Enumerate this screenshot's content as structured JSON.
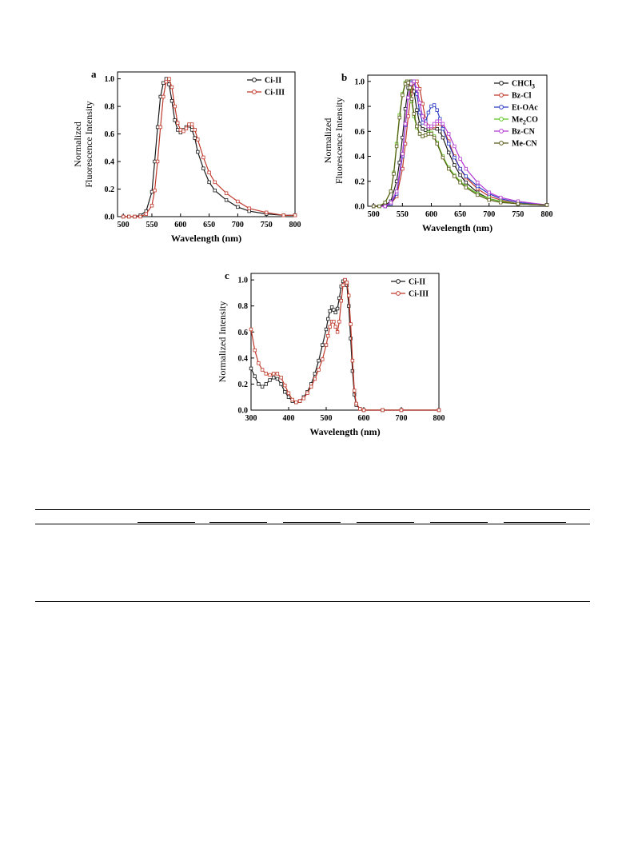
{
  "colors": {
    "black": "#1a1a1a",
    "red": "#c0392b",
    "blue": "#2b3cc4",
    "green": "#5ec41f",
    "magenta": "#b23ad0",
    "olive": "#5a5a1a"
  },
  "chart_data": [
    {
      "id": "a",
      "panel_label": "a",
      "type": "line",
      "title": "",
      "xlabel": "Wavelength (nm)",
      "ylabel": [
        "Normalized",
        "Fluorescence Intensity"
      ],
      "xlim": [
        490,
        800
      ],
      "ylim": [
        0,
        1.05
      ],
      "xticks": [
        500,
        550,
        600,
        650,
        700,
        750,
        800
      ],
      "yticks": [
        0.0,
        0.2,
        0.4,
        0.6,
        0.8,
        1.0
      ],
      "legend_position": "top-right",
      "series": [
        {
          "name": "Ci-II",
          "color": "#1a1a1a",
          "x": [
            500,
            510,
            520,
            530,
            540,
            550,
            555,
            560,
            565,
            570,
            575,
            580,
            585,
            590,
            595,
            600,
            605,
            610,
            615,
            620,
            625,
            630,
            640,
            650,
            660,
            680,
            700,
            720,
            750,
            780,
            800
          ],
          "y": [
            0.0,
            0.0,
            0.0,
            0.01,
            0.04,
            0.18,
            0.4,
            0.65,
            0.87,
            0.97,
            1.0,
            0.96,
            0.84,
            0.7,
            0.63,
            0.61,
            0.63,
            0.65,
            0.66,
            0.63,
            0.57,
            0.47,
            0.35,
            0.25,
            0.19,
            0.12,
            0.07,
            0.04,
            0.02,
            0.01,
            0.01
          ]
        },
        {
          "name": "Ci-III",
          "color": "#c0392b",
          "x": [
            500,
            510,
            520,
            530,
            540,
            550,
            555,
            560,
            565,
            570,
            575,
            580,
            585,
            590,
            595,
            600,
            605,
            610,
            615,
            620,
            625,
            630,
            640,
            650,
            660,
            680,
            700,
            720,
            750,
            780,
            800
          ],
          "y": [
            0.0,
            0.0,
            0.0,
            0.0,
            0.02,
            0.08,
            0.19,
            0.4,
            0.65,
            0.87,
            0.98,
            1.0,
            0.94,
            0.8,
            0.68,
            0.63,
            0.62,
            0.64,
            0.67,
            0.67,
            0.63,
            0.56,
            0.43,
            0.32,
            0.25,
            0.17,
            0.11,
            0.06,
            0.03,
            0.01,
            0.01
          ]
        }
      ]
    },
    {
      "id": "b",
      "panel_label": "b",
      "type": "line",
      "title": "",
      "xlabel": "Wavelength (nm)",
      "ylabel": [
        "Normalized",
        "Fluorescence Intensity"
      ],
      "xlim": [
        490,
        800
      ],
      "ylim": [
        0,
        1.05
      ],
      "xticks": [
        500,
        550,
        600,
        650,
        700,
        750,
        800
      ],
      "yticks": [
        0.0,
        0.2,
        0.4,
        0.6,
        0.8,
        1.0
      ],
      "legend_position": "top-right",
      "series": [
        {
          "name": "CHCl3",
          "label_main": "CHCl",
          "label_sub": "3",
          "color": "#1a1a1a",
          "x": [
            500,
            520,
            530,
            540,
            545,
            550,
            555,
            560,
            565,
            570,
            575,
            580,
            585,
            590,
            595,
            600,
            605,
            610,
            615,
            620,
            630,
            640,
            650,
            660,
            680,
            700,
            720,
            750,
            800
          ],
          "y": [
            0.0,
            0.01,
            0.04,
            0.2,
            0.35,
            0.55,
            0.78,
            0.95,
            1.0,
            0.92,
            0.77,
            0.66,
            0.62,
            0.61,
            0.62,
            0.63,
            0.63,
            0.62,
            0.6,
            0.55,
            0.43,
            0.33,
            0.25,
            0.19,
            0.11,
            0.06,
            0.04,
            0.02,
            0.01
          ]
        },
        {
          "name": "Bz-Cl",
          "color": "#c0392b",
          "x": [
            500,
            520,
            530,
            540,
            550,
            555,
            560,
            565,
            570,
            575,
            580,
            585,
            590,
            595,
            600,
            605,
            610,
            615,
            620,
            630,
            640,
            650,
            660,
            680,
            700,
            720,
            750,
            800
          ],
          "y": [
            0.0,
            0.0,
            0.02,
            0.08,
            0.3,
            0.5,
            0.72,
            0.9,
            0.99,
            1.0,
            0.94,
            0.82,
            0.7,
            0.64,
            0.63,
            0.64,
            0.66,
            0.66,
            0.63,
            0.52,
            0.4,
            0.3,
            0.23,
            0.14,
            0.08,
            0.05,
            0.02,
            0.01
          ]
        },
        {
          "name": "Et-OAc",
          "color": "#2b3cc4",
          "x": [
            500,
            520,
            530,
            540,
            550,
            555,
            560,
            565,
            570,
            575,
            580,
            585,
            590,
            595,
            600,
            605,
            610,
            615,
            620,
            630,
            640,
            650,
            660,
            680,
            700,
            720,
            750,
            800
          ],
          "y": [
            0.0,
            0.0,
            0.02,
            0.1,
            0.4,
            0.65,
            0.87,
            0.99,
            1.0,
            0.9,
            0.75,
            0.67,
            0.68,
            0.75,
            0.8,
            0.81,
            0.77,
            0.7,
            0.62,
            0.5,
            0.39,
            0.3,
            0.24,
            0.16,
            0.1,
            0.06,
            0.03,
            0.01
          ]
        },
        {
          "name": "Me2CO",
          "label_main": "Me",
          "label_sub": "2",
          "label_tail": "CO",
          "color": "#5ec41f",
          "x": [
            500,
            510,
            520,
            530,
            535,
            540,
            545,
            550,
            555,
            558,
            560,
            563,
            566,
            570,
            575,
            580,
            585,
            590,
            595,
            600,
            605,
            610,
            620,
            630,
            640,
            650,
            660,
            680,
            700,
            720,
            750,
            800
          ],
          "y": [
            0.0,
            0.0,
            0.03,
            0.12,
            0.27,
            0.5,
            0.73,
            0.9,
            0.99,
            1.0,
            0.99,
            0.94,
            0.84,
            0.72,
            0.63,
            0.58,
            0.56,
            0.57,
            0.59,
            0.59,
            0.56,
            0.51,
            0.4,
            0.31,
            0.25,
            0.2,
            0.16,
            0.1,
            0.06,
            0.04,
            0.02,
            0.01
          ]
        },
        {
          "name": "Bz-CN",
          "color": "#b23ad0",
          "x": [
            500,
            520,
            530,
            540,
            550,
            555,
            560,
            565,
            570,
            575,
            580,
            585,
            590,
            595,
            600,
            605,
            610,
            615,
            620,
            630,
            640,
            650,
            660,
            680,
            700,
            720,
            750,
            800
          ],
          "y": [
            0.0,
            0.0,
            0.03,
            0.12,
            0.42,
            0.66,
            0.87,
            0.98,
            1.0,
            0.94,
            0.83,
            0.72,
            0.66,
            0.64,
            0.64,
            0.66,
            0.68,
            0.68,
            0.66,
            0.58,
            0.48,
            0.38,
            0.3,
            0.19,
            0.11,
            0.07,
            0.04,
            0.01
          ]
        },
        {
          "name": "Me-CN",
          "color": "#5a5a1a",
          "x": [
            500,
            510,
            520,
            530,
            535,
            540,
            545,
            550,
            555,
            558,
            560,
            563,
            566,
            570,
            575,
            580,
            585,
            590,
            595,
            600,
            605,
            610,
            620,
            630,
            640,
            650,
            660,
            680,
            700,
            720,
            750,
            800
          ],
          "y": [
            0.0,
            0.0,
            0.03,
            0.12,
            0.26,
            0.48,
            0.71,
            0.89,
            0.98,
            1.0,
            0.99,
            0.95,
            0.86,
            0.74,
            0.64,
            0.58,
            0.56,
            0.57,
            0.58,
            0.58,
            0.55,
            0.5,
            0.39,
            0.3,
            0.24,
            0.19,
            0.15,
            0.09,
            0.05,
            0.03,
            0.02,
            0.01
          ]
        }
      ]
    },
    {
      "id": "c",
      "panel_label": "c",
      "type": "line",
      "title": "",
      "xlabel": "Wavelength (nm)",
      "ylabel": [
        "Normalized Intensity"
      ],
      "xlim": [
        300,
        800
      ],
      "ylim": [
        0,
        1.05
      ],
      "xticks": [
        300,
        400,
        500,
        600,
        700,
        800
      ],
      "yticks": [
        0.0,
        0.2,
        0.4,
        0.6,
        0.8,
        1.0
      ],
      "legend_position": "top-right",
      "series": [
        {
          "name": "Ci-II",
          "color": "#1a1a1a",
          "x": [
            300,
            310,
            320,
            330,
            340,
            350,
            360,
            370,
            380,
            390,
            400,
            410,
            420,
            430,
            440,
            450,
            460,
            470,
            480,
            490,
            500,
            505,
            510,
            515,
            520,
            525,
            530,
            535,
            540,
            545,
            550,
            555,
            560,
            565,
            570,
            575,
            580,
            590,
            600,
            650,
            700,
            800
          ],
          "y": [
            0.32,
            0.26,
            0.2,
            0.18,
            0.2,
            0.23,
            0.25,
            0.24,
            0.2,
            0.14,
            0.1,
            0.07,
            0.06,
            0.07,
            0.1,
            0.14,
            0.2,
            0.28,
            0.38,
            0.5,
            0.62,
            0.7,
            0.76,
            0.79,
            0.77,
            0.75,
            0.78,
            0.86,
            0.95,
            0.99,
            1.0,
            0.96,
            0.8,
            0.55,
            0.3,
            0.12,
            0.04,
            0.01,
            0.0,
            0.0,
            0.0,
            0.0
          ]
        },
        {
          "name": "Ci-III",
          "color": "#c0392b",
          "x": [
            300,
            310,
            320,
            330,
            340,
            350,
            360,
            370,
            380,
            390,
            400,
            410,
            420,
            430,
            440,
            450,
            460,
            470,
            480,
            490,
            500,
            505,
            510,
            515,
            520,
            525,
            530,
            535,
            540,
            545,
            550,
            555,
            560,
            565,
            570,
            575,
            580,
            590,
            600,
            650,
            700,
            800
          ],
          "y": [
            0.62,
            0.46,
            0.36,
            0.31,
            0.28,
            0.27,
            0.28,
            0.28,
            0.25,
            0.19,
            0.13,
            0.08,
            0.06,
            0.07,
            0.09,
            0.13,
            0.18,
            0.24,
            0.31,
            0.39,
            0.5,
            0.57,
            0.64,
            0.68,
            0.68,
            0.64,
            0.6,
            0.68,
            0.84,
            0.96,
            1.0,
            0.98,
            0.88,
            0.66,
            0.38,
            0.15,
            0.05,
            0.01,
            0.0,
            0.0,
            0.0,
            0.0
          ]
        }
      ]
    }
  ]
}
